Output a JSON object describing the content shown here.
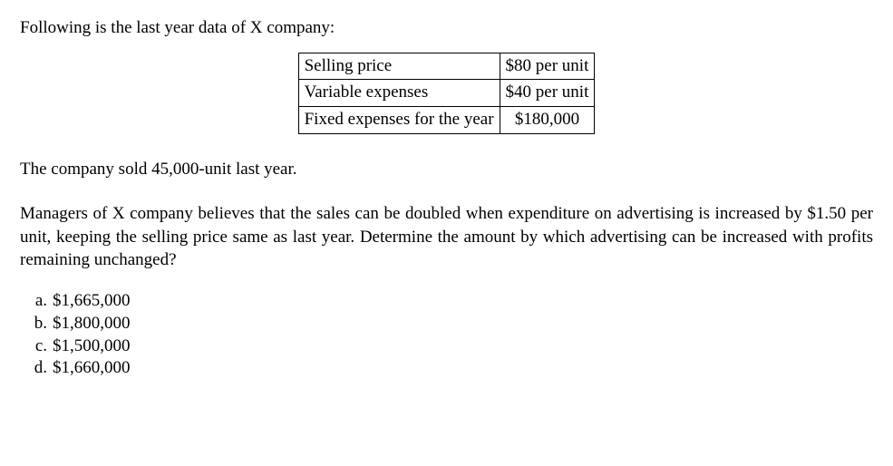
{
  "intro": "Following is the last year data of X company:",
  "table": {
    "rows": [
      {
        "label": "Selling price",
        "value": "$80 per unit"
      },
      {
        "label": "Variable expenses",
        "value": "$40 per unit"
      },
      {
        "label": "Fixed expenses for the year",
        "value": "$180,000"
      }
    ]
  },
  "sold_line": "The company sold 45,000-unit last year.",
  "prompt_para": "Managers of X company believes that the sales can be doubled when expenditure on advertising is increased by $1.50 per unit, keeping the selling price same as last year. Determine the amount by which advertising can be increased with profits remaining unchanged?",
  "options": [
    {
      "letter": "a.",
      "text": "$1,665,000"
    },
    {
      "letter": "b.",
      "text": "$1,800,000"
    },
    {
      "letter": "c.",
      "text": "$1,500,000"
    },
    {
      "letter": "d.",
      "text": "$1,660,000"
    }
  ]
}
